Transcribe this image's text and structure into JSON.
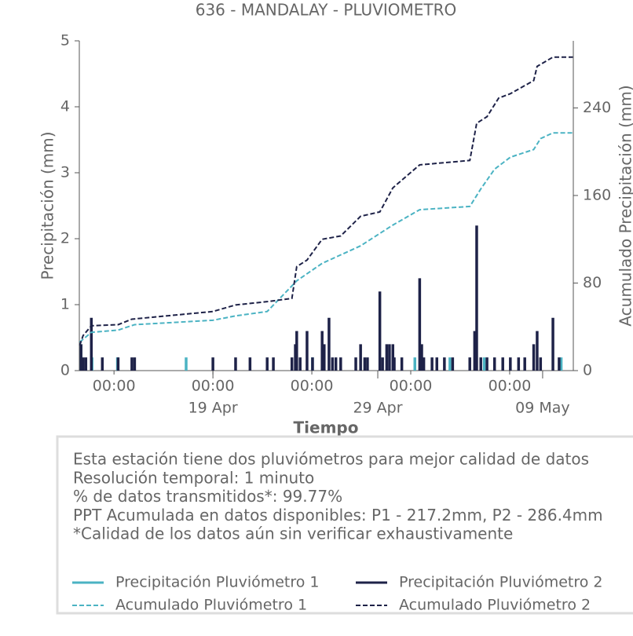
{
  "chart_data": {
    "type": "line",
    "title": "636 - MANDALAY - PLUVIOMETRO",
    "xlabel": "Tiempo",
    "ylabel": "Precipitación (mm)",
    "y2label": "Acumulado Precipitación (mm)",
    "xlim": [
      "04-10 21:30",
      "05-10 20:40"
    ],
    "xticks": [
      {
        "value": "04-13 00:00",
        "label": "00:00"
      },
      {
        "value": "04-19 00:00",
        "label": "00:00"
      },
      {
        "value": "04-25 00:00",
        "label": "00:00"
      },
      {
        "value": "05-01 00:00",
        "label": "00:00"
      },
      {
        "value": "05-07 00:00",
        "label": "00:00"
      }
    ],
    "xticks_major": [
      {
        "value": "04-19 00:00",
        "label": "19 Apr"
      },
      {
        "value": "04-29 00:00",
        "label": "29 Apr"
      },
      {
        "value": "05-09 00:00",
        "label": "09 May"
      }
    ],
    "ylim": [
      0,
      5
    ],
    "yticks": [
      0,
      1,
      2,
      3,
      4,
      5
    ],
    "y2lim": [
      0,
      301.3
    ],
    "y2ticks": [
      0,
      80,
      160,
      240
    ],
    "series": [
      {
        "name": "Precipitación Pluviómetro 1",
        "color": "#4bb3c3",
        "style": "spike",
        "x": [
          "04-11 00:00",
          "04-11 16:00",
          "04-13 05:00",
          "04-17 09:00",
          "04-25 01:00",
          "05-01 06:00",
          "05-03 09:00",
          "05-05 11:00",
          "05-10 03:00"
        ],
        "values": [
          0.4,
          0.2,
          0.2,
          0.2,
          0.2,
          0.2,
          0.2,
          0.2,
          0.2
        ]
      },
      {
        "name": "Precipitación Pluviómetro 2",
        "color": "#1e2248",
        "style": "spike",
        "x": [
          "04-11 00:00",
          "04-11 03:00",
          "04-11 07:00",
          "04-11 15:00",
          "04-12 07:00",
          "04-13 06:00",
          "04-14 02:00",
          "04-14 06:00",
          "04-19 00:00",
          "04-20 09:00",
          "04-21 06:00",
          "04-22 07:00",
          "04-22 16:00",
          "04-23 19:00",
          "04-24 00:00",
          "04-24 02:00",
          "04-24 07:00",
          "04-24 17:00",
          "04-25 01:00",
          "04-25 15:00",
          "04-25 18:00",
          "04-26 01:00",
          "04-26 06:00",
          "04-26 11:00",
          "04-26 18:00",
          "04-27 16:00",
          "04-27 23:00",
          "04-28 05:00",
          "04-28 09:00",
          "04-29 03:00",
          "04-29 07:00",
          "04-29 13:00",
          "04-29 17:00",
          "04-29 22:00",
          "04-30 00:00",
          "04-30 11:00",
          "05-01 13:00",
          "05-01 16:00",
          "05-01 19:00",
          "05-02 07:00",
          "05-02 14:00",
          "05-03 01:00",
          "05-03 13:00",
          "05-04 14:00",
          "05-04 21:00",
          "05-05 00:00",
          "05-05 06:00",
          "05-05 15:00",
          "05-06 02:00",
          "05-06 14:00",
          "05-07 01:00",
          "05-07 13:00",
          "05-07 22:00",
          "05-08 11:00",
          "05-08 16:00",
          "05-08 21:00",
          "05-09 15:00",
          "05-10 00:00"
        ],
        "values": [
          0.4,
          0.2,
          0.2,
          0.8,
          0.2,
          0.2,
          0.2,
          0.2,
          0.2,
          0.2,
          0.2,
          0.2,
          0.2,
          0.2,
          0.4,
          0.6,
          0.2,
          0.6,
          0.2,
          0.6,
          0.4,
          0.8,
          0.2,
          0.2,
          0.2,
          0.2,
          0.4,
          0.2,
          0.2,
          1.2,
          0.2,
          0.4,
          0.4,
          0.4,
          0.2,
          0.2,
          1.4,
          0.4,
          0.2,
          0.2,
          0.2,
          0.2,
          0.2,
          0.2,
          0.6,
          2.2,
          0.2,
          0.2,
          0.2,
          0.2,
          0.2,
          0.2,
          0.2,
          0.4,
          0.6,
          0.2,
          0.8,
          0.2
        ]
      },
      {
        "name": "Acumulado Pluviómetro 1",
        "color": "#4bb3c3",
        "style": "dashed",
        "axis": "y2",
        "x": [
          "04-10 22:00",
          "04-11 15:00",
          "04-13 06:00",
          "04-14 06:00",
          "04-19 00:00",
          "04-20 09:00",
          "04-22 07:00",
          "04-24 02:00",
          "04-25 15:00",
          "04-27 23:00",
          "04-29 22:00",
          "05-01 13:00",
          "05-04 14:00",
          "05-05 06:00",
          "05-06 02:00",
          "05-07 01:00",
          "05-08 11:00",
          "05-08 21:00",
          "05-09 15:00",
          "05-10 20:00"
        ],
        "values": [
          26,
          35,
          37,
          42,
          46,
          50,
          54,
          82,
          98,
          114,
          133,
          147,
          150,
          166,
          184,
          195,
          202,
          212,
          217.2,
          217.2
        ]
      },
      {
        "name": "Acumulado Pluviómetro 2",
        "color": "#1e2248",
        "style": "dashed",
        "axis": "y2",
        "x": [
          "04-10 22:00",
          "04-11 03:00",
          "04-11 15:00",
          "04-13 06:00",
          "04-14 02:00",
          "04-19 00:00",
          "04-20 09:00",
          "04-22 07:00",
          "04-23 19:00",
          "04-24 02:00",
          "04-24 17:00",
          "04-25 15:00",
          "04-26 18:00",
          "04-27 23:00",
          "04-29 03:00",
          "04-29 22:00",
          "05-01 13:00",
          "05-04 14:00",
          "05-05 00:00",
          "05-05 15:00",
          "05-06 08:00",
          "05-07 01:00",
          "05-08 11:00",
          "05-08 16:00",
          "05-09 15:00",
          "05-10 20:00"
        ],
        "values": [
          23,
          32,
          41,
          42,
          47,
          54,
          60,
          63,
          66,
          95,
          101,
          120,
          123,
          141,
          145,
          167,
          188,
          192,
          226,
          232,
          249,
          253,
          265,
          278,
          286.4,
          286.4
        ]
      }
    ],
    "notes": [
      "Esta estación tiene dos pluviómetros para mejor calidad de datos",
      "Resolución temporal: 1 minuto",
      "% de datos transmitidos*: 99.77%",
      "PPT Acumulada en datos disponibles: P1 - 217.2mm, P2 - 286.4mm",
      "*Calidad de los datos aún sin verificar exhaustivamente"
    ]
  }
}
